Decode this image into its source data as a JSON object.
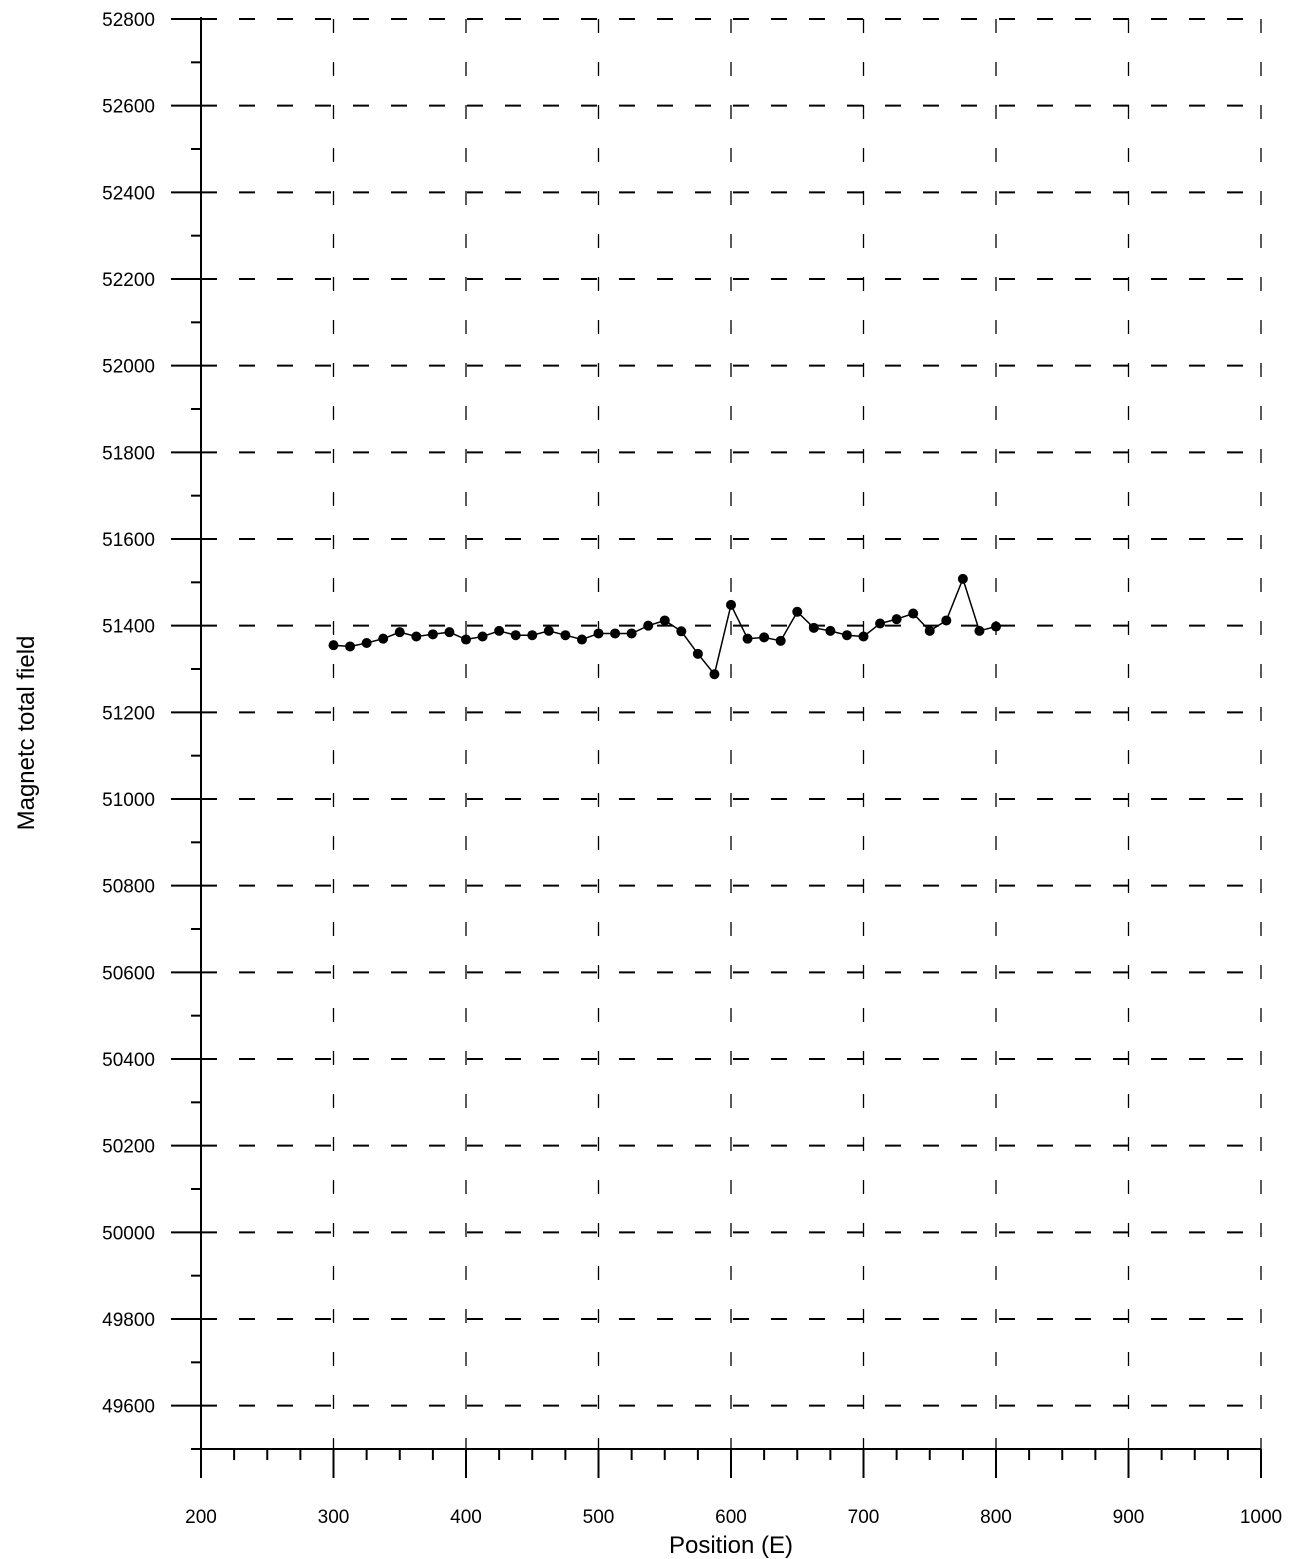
{
  "chart_data": {
    "type": "line",
    "title": "",
    "xlabel": "Position (E)",
    "ylabel": "Magnetc total field",
    "xlim": [
      200,
      1000
    ],
    "ylim": [
      49500,
      52800
    ],
    "x_ticks": [
      200,
      300,
      400,
      500,
      600,
      700,
      800,
      900,
      1000
    ],
    "y_ticks": [
      49600,
      49800,
      50000,
      50200,
      50400,
      50600,
      50800,
      51000,
      51200,
      51400,
      51600,
      51800,
      52000,
      52200,
      52400,
      52600,
      52800
    ],
    "x_minor_step": 25,
    "y_minor_step": 100,
    "grid": true,
    "grid_style": "dashed",
    "marker": "filled-circle",
    "line_color": "#000000",
    "series": [
      {
        "x": [
          300,
          312.5,
          325,
          337.5,
          350,
          362.5,
          375,
          387.5,
          400,
          412.5,
          425,
          437.5,
          450,
          462.5,
          475,
          487.5,
          500,
          512.5,
          525,
          537.5,
          550,
          562.5,
          575,
          587.5,
          600,
          612.5,
          625,
          637.5,
          650,
          662.5,
          675,
          687.5,
          700,
          712.5,
          725,
          737.5,
          750,
          762.5,
          775,
          787.5,
          800
        ],
        "y": [
          51355,
          51352,
          51360,
          51370,
          51385,
          51375,
          51380,
          51385,
          51368,
          51375,
          51388,
          51378,
          51378,
          51388,
          51378,
          51368,
          51382,
          51382,
          51382,
          51400,
          51412,
          51387,
          51335,
          51288,
          51448,
          51370,
          51373,
          51365,
          51432,
          51395,
          51388,
          51378,
          51375,
          51405,
          51415,
          51428,
          51388,
          51412,
          51508,
          51388,
          51398
        ]
      }
    ]
  }
}
